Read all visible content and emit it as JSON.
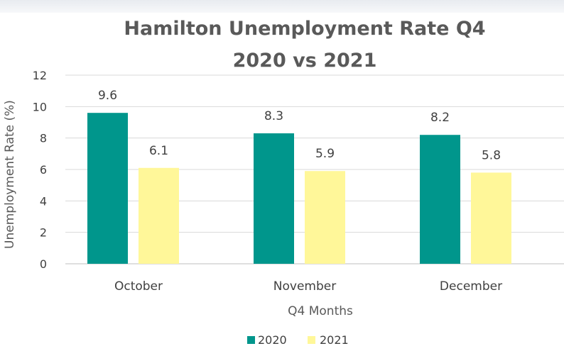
{
  "chart_data": {
    "type": "bar",
    "title": "Hamilton Unemployment Rate Q4",
    "subtitle": "2020 vs 2021",
    "xlabel": "Q4 Months",
    "ylabel": "Unemployment  Rate (%)",
    "categories": [
      "October",
      "November",
      "December"
    ],
    "series": [
      {
        "name": "2020",
        "values": [
          9.6,
          8.3,
          8.2
        ],
        "color": "#00968c"
      },
      {
        "name": "2021",
        "values": [
          6.1,
          5.9,
          5.8
        ],
        "color": "#fff799"
      }
    ],
    "ylim": [
      0,
      12
    ],
    "yticks": [
      0,
      2,
      4,
      6,
      8,
      10,
      12
    ],
    "grid": true,
    "legend": "bottom"
  }
}
